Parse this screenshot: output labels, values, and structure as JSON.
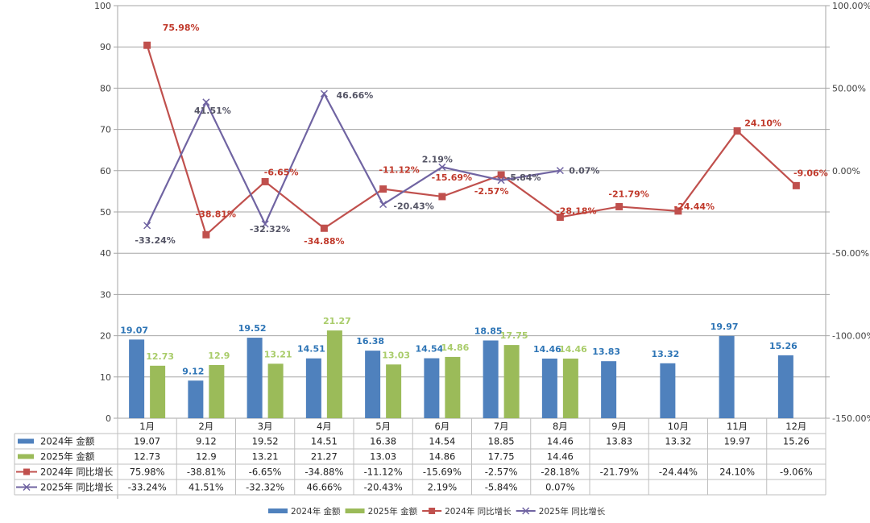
{
  "chart_data": {
    "type": "bar",
    "title": "",
    "xlabel": "",
    "ylabel": "",
    "categories": [
      "1月",
      "2月",
      "3月",
      "4月",
      "5月",
      "6月",
      "7月",
      "8月",
      "9月",
      "10月",
      "11月",
      "12月"
    ],
    "ylim": [
      0,
      100
    ],
    "y_ticks": [
      "0",
      "10",
      "20",
      "30",
      "40",
      "50",
      "60",
      "70",
      "80",
      "90",
      "100"
    ],
    "y2lim": [
      -150,
      100
    ],
    "y2_ticks": [
      "-150.00%",
      "-100.00%",
      "-50.00%",
      "0.00%",
      "50.00%",
      "100.00%"
    ],
    "grid": true,
    "legend_position": "bottom",
    "series": [
      {
        "name": "2024年 金额",
        "kind": "bar",
        "axis": "left",
        "color": "#4F81BD",
        "label_color": "#2E75B6",
        "values": [
          19.07,
          9.12,
          19.52,
          14.51,
          16.38,
          14.54,
          18.85,
          14.46,
          13.83,
          13.32,
          19.97,
          15.26
        ],
        "display": [
          "19.07",
          "9.12",
          "19.52",
          "14.51",
          "16.38",
          "14.54",
          "18.85",
          "14.46",
          "13.83",
          "13.32",
          "19.97",
          "15.26"
        ]
      },
      {
        "name": "2025年 金额",
        "kind": "bar",
        "axis": "left",
        "color": "#9BBB59",
        "label_color": "#A9CC6A",
        "values": [
          12.73,
          12.9,
          13.21,
          21.27,
          13.03,
          14.86,
          17.75,
          14.46,
          null,
          null,
          null,
          null
        ],
        "display": [
          "12.73",
          "12.9",
          "13.21",
          "21.27",
          "13.03",
          "14.86",
          "17.75",
          "14.46",
          "",
          "",
          "",
          ""
        ]
      },
      {
        "name": "2024年 同比增长",
        "kind": "line",
        "axis": "right",
        "marker": "square",
        "color": "#C0504D",
        "label_color": "#C0392B",
        "values": [
          75.98,
          -38.81,
          -6.65,
          -34.88,
          -11.12,
          -15.69,
          -2.57,
          -28.18,
          -21.79,
          -24.44,
          24.1,
          -9.06
        ],
        "display": [
          "75.98%",
          "-38.81%",
          "-6.65%",
          "-34.88%",
          "-11.12%",
          "-15.69%",
          "-2.57%",
          "-28.18%",
          "-21.79%",
          "-24.44%",
          "24.10%",
          "-9.06%"
        ]
      },
      {
        "name": "2025年 同比增长",
        "kind": "line",
        "axis": "right",
        "marker": "x",
        "color": "#7064A2",
        "label_color": "#555566",
        "values": [
          -33.24,
          41.51,
          -32.32,
          46.66,
          -20.43,
          2.19,
          -5.84,
          0.07,
          null,
          null,
          null,
          null
        ],
        "display": [
          "-33.24%",
          "41.51%",
          "-32.32%",
          "46.66%",
          "-20.43%",
          "2.19%",
          "-5.84%",
          "0.07%",
          "",
          "",
          "",
          ""
        ]
      }
    ]
  }
}
